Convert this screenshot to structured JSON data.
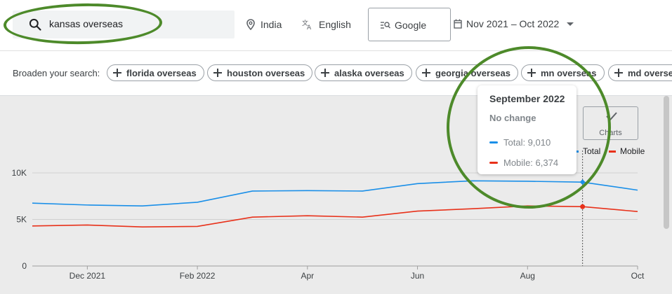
{
  "search": {
    "query": "kansas overseas"
  },
  "filters": {
    "location": "India",
    "language": "English",
    "engine": "Google",
    "date_range": "Nov 2021 – Oct 2022"
  },
  "broaden": {
    "label": "Broaden your search:",
    "chips": [
      "florida overseas",
      "houston overseas",
      "alaska overseas",
      "georgia overseas",
      "mn overseas",
      "md overseas"
    ]
  },
  "charts_button": {
    "label": "Charts"
  },
  "tooltip": {
    "title": "September 2022",
    "subtitle": "No change",
    "total": "Total: 9,010",
    "mobile": "Mobile: 6,374"
  },
  "colors": {
    "total": "#1a8fe8",
    "mobile": "#e8311a",
    "annotation": "#4d8a2a"
  },
  "chart_data": {
    "type": "line",
    "x": [
      "Nov 2021",
      "Dec 2021",
      "Jan 2022",
      "Feb 2022",
      "Mar 2022",
      "Apr 2022",
      "May 2022",
      "Jun 2022",
      "Jul 2022",
      "Aug 2022",
      "Sep 2022",
      "Oct 2022"
    ],
    "x_tick_labels": [
      "Dec 2021",
      "Feb 2022",
      "Apr",
      "Jun",
      "Aug",
      "Oct"
    ],
    "y_tick_labels": [
      "10K",
      "5K",
      "0"
    ],
    "ylim": [
      0,
      10000
    ],
    "legend": "top-right",
    "series": [
      {
        "name": "Total",
        "color": "#1a8fe8",
        "values": [
          6750,
          6550,
          6450,
          6850,
          8050,
          8100,
          8050,
          8850,
          9150,
          9100,
          9010,
          8150
        ]
      },
      {
        "name": "Mobile",
        "color": "#e8311a",
        "values": [
          4300,
          4400,
          4200,
          4250,
          5250,
          5400,
          5250,
          5900,
          6150,
          6450,
          6374,
          5850
        ]
      }
    ],
    "highlight_index": 10
  }
}
